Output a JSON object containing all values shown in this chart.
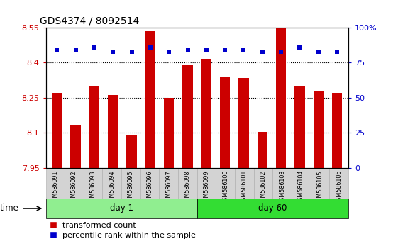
{
  "title": "GDS4374 / 8092514",
  "samples": [
    "GSM586091",
    "GSM586092",
    "GSM586093",
    "GSM586094",
    "GSM586095",
    "GSM586096",
    "GSM586097",
    "GSM586098",
    "GSM586099",
    "GSM586100",
    "GSM586101",
    "GSM586102",
    "GSM586103",
    "GSM586104",
    "GSM586105",
    "GSM586106"
  ],
  "transformed_counts": [
    8.27,
    8.13,
    8.3,
    8.26,
    8.09,
    8.535,
    8.25,
    8.39,
    8.415,
    8.34,
    8.335,
    8.103,
    8.55,
    8.3,
    8.28,
    8.27
  ],
  "percentile_values": [
    84,
    84,
    86,
    83,
    83,
    86,
    83,
    84,
    84,
    84,
    84,
    83,
    83,
    86,
    83,
    83
  ],
  "ylim_left": [
    7.95,
    8.55
  ],
  "ylim_right": [
    0,
    100
  ],
  "yticks_left": [
    7.95,
    8.1,
    8.25,
    8.4,
    8.55
  ],
  "yticks_right": [
    0,
    25,
    50,
    75,
    100
  ],
  "ytick_labels_left": [
    "7.95",
    "8.1",
    "8.25",
    "8.4",
    "8.55"
  ],
  "ytick_labels_right": [
    "0",
    "25",
    "50",
    "75",
    "100%"
  ],
  "hlines": [
    8.1,
    8.25,
    8.4
  ],
  "bar_color": "#cc0000",
  "percentile_color": "#0000cc",
  "day1_samples": 8,
  "day60_samples": 8,
  "day1_label": "day 1",
  "day60_label": "day 60",
  "day1_color": "#90ee90",
  "day60_color": "#33dd33",
  "time_label": "time",
  "legend_bar_label": "transformed count",
  "legend_pct_label": "percentile rank within the sample",
  "background_color": "#ffffff",
  "left_tick_color": "#cc0000",
  "right_tick_color": "#0000cc",
  "title_fontsize": 10,
  "tick_fontsize": 8,
  "bar_width": 0.55,
  "cell_color": "#d3d3d3",
  "cell_border_color": "#aaaaaa"
}
